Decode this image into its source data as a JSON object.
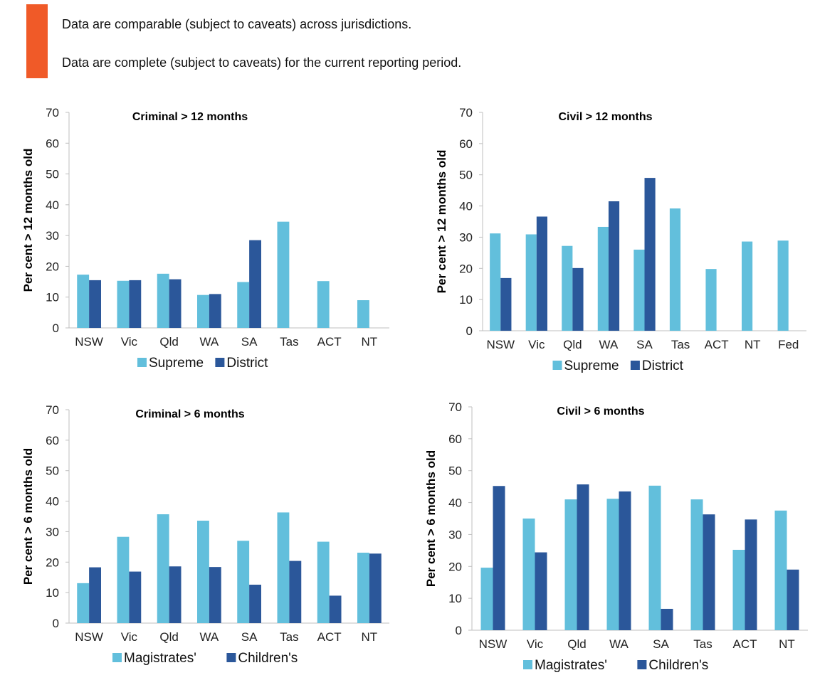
{
  "header": {
    "accent_color": "#f05a28",
    "notes": [
      "Data are comparable (subject to caveats) across jurisdictions.",
      "Data are complete (subject to caveats) for the current reporting period."
    ]
  },
  "colors": {
    "series1": "#62bfdc",
    "series2": "#2b579a"
  },
  "chart_data": [
    {
      "type": "bar",
      "title": "Criminal  > 12  months",
      "ylabel": "Per cent > 12 months old",
      "xlabel": "",
      "ylim": [
        0,
        70
      ],
      "yticks": [
        0,
        10,
        20,
        30,
        40,
        50,
        60,
        70
      ],
      "categories": [
        "NSW",
        "Vic",
        "Qld",
        "WA",
        "SA",
        "Tas",
        "ACT",
        "NT"
      ],
      "series": [
        {
          "name": "Supreme",
          "values": [
            17.3,
            15.3,
            17.6,
            10.7,
            14.9,
            34.5,
            15.2,
            9.0
          ]
        },
        {
          "name": "District",
          "values": [
            15.5,
            15.5,
            15.8,
            11.0,
            28.5,
            null,
            null,
            null
          ]
        }
      ],
      "legend": "bottom"
    },
    {
      "type": "bar",
      "title": "Civil  > 12 months",
      "ylabel": "Per cent > 12 months old",
      "xlabel": "",
      "ylim": [
        0,
        70
      ],
      "yticks": [
        0,
        10,
        20,
        30,
        40,
        50,
        60,
        70
      ],
      "categories": [
        "NSW",
        "Vic",
        "Qld",
        "WA",
        "SA",
        "Tas",
        "ACT",
        "NT",
        "Fed"
      ],
      "series": [
        {
          "name": "Supreme",
          "values": [
            31.2,
            30.9,
            27.2,
            33.3,
            26.0,
            39.2,
            19.8,
            28.6,
            28.9
          ]
        },
        {
          "name": "District",
          "values": [
            16.9,
            36.6,
            20.1,
            41.5,
            49.0,
            null,
            null,
            null,
            null
          ]
        }
      ],
      "legend": "bottom"
    },
    {
      "type": "bar",
      "title": "Criminal  > 6 months",
      "ylabel": "Per cent > 6 months old",
      "xlabel": "",
      "ylim": [
        0,
        70
      ],
      "yticks": [
        0,
        10,
        20,
        30,
        40,
        50,
        60,
        70
      ],
      "categories": [
        "NSW",
        "Vic",
        "Qld",
        "WA",
        "SA",
        "Tas",
        "ACT",
        "NT"
      ],
      "series": [
        {
          "name": "Magistrates'",
          "values": [
            13.1,
            28.3,
            35.7,
            33.6,
            27.0,
            36.3,
            26.7,
            23.1
          ]
        },
        {
          "name": "Children's",
          "values": [
            18.3,
            16.9,
            18.6,
            18.4,
            12.6,
            20.4,
            9.0,
            22.8
          ]
        }
      ],
      "legend": "bottom"
    },
    {
      "type": "bar",
      "title": "Civil  > 6 months",
      "ylabel": "Per cent > 6 months old",
      "xlabel": "",
      "ylim": [
        0,
        70
      ],
      "yticks": [
        0,
        10,
        20,
        30,
        40,
        50,
        60,
        70
      ],
      "categories": [
        "NSW",
        "Vic",
        "Qld",
        "WA",
        "SA",
        "Tas",
        "ACT",
        "NT"
      ],
      "series": [
        {
          "name": "Magistrates'",
          "values": [
            19.6,
            35.0,
            41.0,
            41.2,
            45.3,
            41.0,
            25.2,
            37.5
          ]
        },
        {
          "name": "Children's",
          "values": [
            45.2,
            24.4,
            45.7,
            43.5,
            6.7,
            36.3,
            34.7,
            19.0
          ]
        }
      ],
      "legend": "bottom"
    }
  ]
}
